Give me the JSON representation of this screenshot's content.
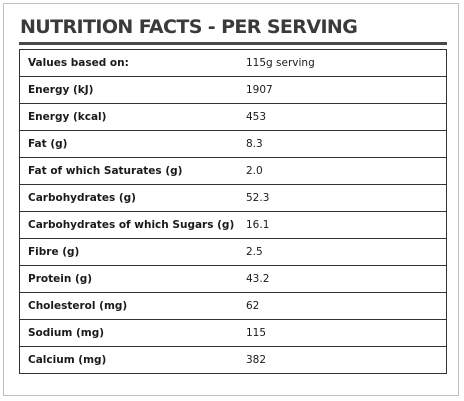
{
  "title": "NUTRITION FACTS - PER SERVING",
  "rows": [
    {
      "label": "Values based on:",
      "value": "115g serving"
    },
    {
      "label": "Energy (kJ)",
      "value": "1907"
    },
    {
      "label": "Energy (kcal)",
      "value": "453"
    },
    {
      "label": "Fat (g)",
      "value": "8.3"
    },
    {
      "label": "Fat of which Saturates (g)",
      "value": "2.0"
    },
    {
      "label": "Carbohydrates (g)",
      "value": "52.3"
    },
    {
      "label": "Carbohydrates of which Sugars (g)",
      "value": "16.1"
    },
    {
      "label": "Fibre (g)",
      "value": "2.5"
    },
    {
      "label": "Protein (g)",
      "value": "43.2"
    },
    {
      "label": "Cholesterol (mg)",
      "value": "62"
    },
    {
      "label": "Sodium (mg)",
      "value": "115"
    },
    {
      "label": "Calcium (mg)",
      "value": "382"
    }
  ]
}
